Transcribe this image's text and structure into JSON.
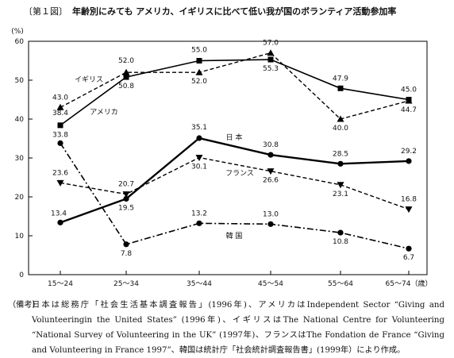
{
  "figure": {
    "title_prefix": "〔第１図〕",
    "title": "年齢別にみても アメリカ、イギリスに比べて低い我が国のボランティア活動参加率"
  },
  "chart_data": {
    "type": "line",
    "ylabel": "(%)",
    "ylim": [
      0,
      60
    ],
    "yticks": [
      0,
      10,
      20,
      30,
      40,
      50,
      60
    ],
    "categories": [
      "15～24",
      "25～34",
      "35～44",
      "45～54",
      "55～64",
      "65～74（歳）"
    ],
    "grid": false,
    "series": [
      {
        "name": "イギリス",
        "values": [
          43.0,
          52.0,
          52.0,
          57.0,
          40.0,
          44.7
        ],
        "style": "dashed",
        "marker": "triangle-up",
        "color": "#000000"
      },
      {
        "name": "アメリカ",
        "values": [
          38.4,
          50.8,
          55.0,
          55.3,
          47.9,
          45.0
        ],
        "style": "solid",
        "marker": "square",
        "color": "#000000"
      },
      {
        "name": "日 本",
        "values": [
          13.4,
          19.5,
          35.1,
          30.8,
          28.5,
          29.2
        ],
        "style": "solid-thick",
        "marker": "circle",
        "color": "#000000"
      },
      {
        "name": "フランス",
        "values": [
          23.6,
          20.7,
          30.1,
          26.6,
          23.1,
          16.8
        ],
        "style": "dashed",
        "marker": "triangle-down",
        "color": "#000000"
      },
      {
        "name": "韓 国",
        "values": [
          33.8,
          7.8,
          13.2,
          13.0,
          10.8,
          6.7
        ],
        "style": "dash-dot",
        "marker": "circle",
        "color": "#000000"
      }
    ],
    "labels": [
      {
        "text": "43.0"
      },
      {
        "text": "52.0"
      },
      {
        "text": "52.0"
      },
      {
        "text": "57.0"
      },
      {
        "text": "40.0"
      },
      {
        "text": "44.7"
      },
      {
        "text": "38.4"
      },
      {
        "text": "50.8"
      },
      {
        "text": "55.0"
      },
      {
        "text": "55.3"
      },
      {
        "text": "47.9"
      },
      {
        "text": "45.0"
      },
      {
        "text": "13.4"
      },
      {
        "text": "19.5"
      },
      {
        "text": "35.1"
      },
      {
        "text": "30.8"
      },
      {
        "text": "28.5"
      },
      {
        "text": "29.2"
      },
      {
        "text": "23.6"
      },
      {
        "text": "20.7"
      },
      {
        "text": "30.1"
      },
      {
        "text": "26.6"
      },
      {
        "text": "23.1"
      },
      {
        "text": "16.8"
      },
      {
        "text": "33.8"
      },
      {
        "text": "7.8"
      },
      {
        "text": "13.2"
      },
      {
        "text": "13.0"
      },
      {
        "text": "10.8"
      },
      {
        "text": "6.7"
      }
    ]
  },
  "note": {
    "head": "（備考）",
    "text": "日本は総務庁「社会生活基本調査報告」(1996年)、アメリカはIndependent Sector “Giving and Volunteeringin the United States” (1996年)、イギリスはThe National Centre for Volunteering “National Survey of Volunteering in the UK” (1997年)、フランスはThe Fondation de France “Giving and Volunteering in France 1997”、韓国は統計庁「社会統計調査報告書」(1999年）により作成。"
  }
}
